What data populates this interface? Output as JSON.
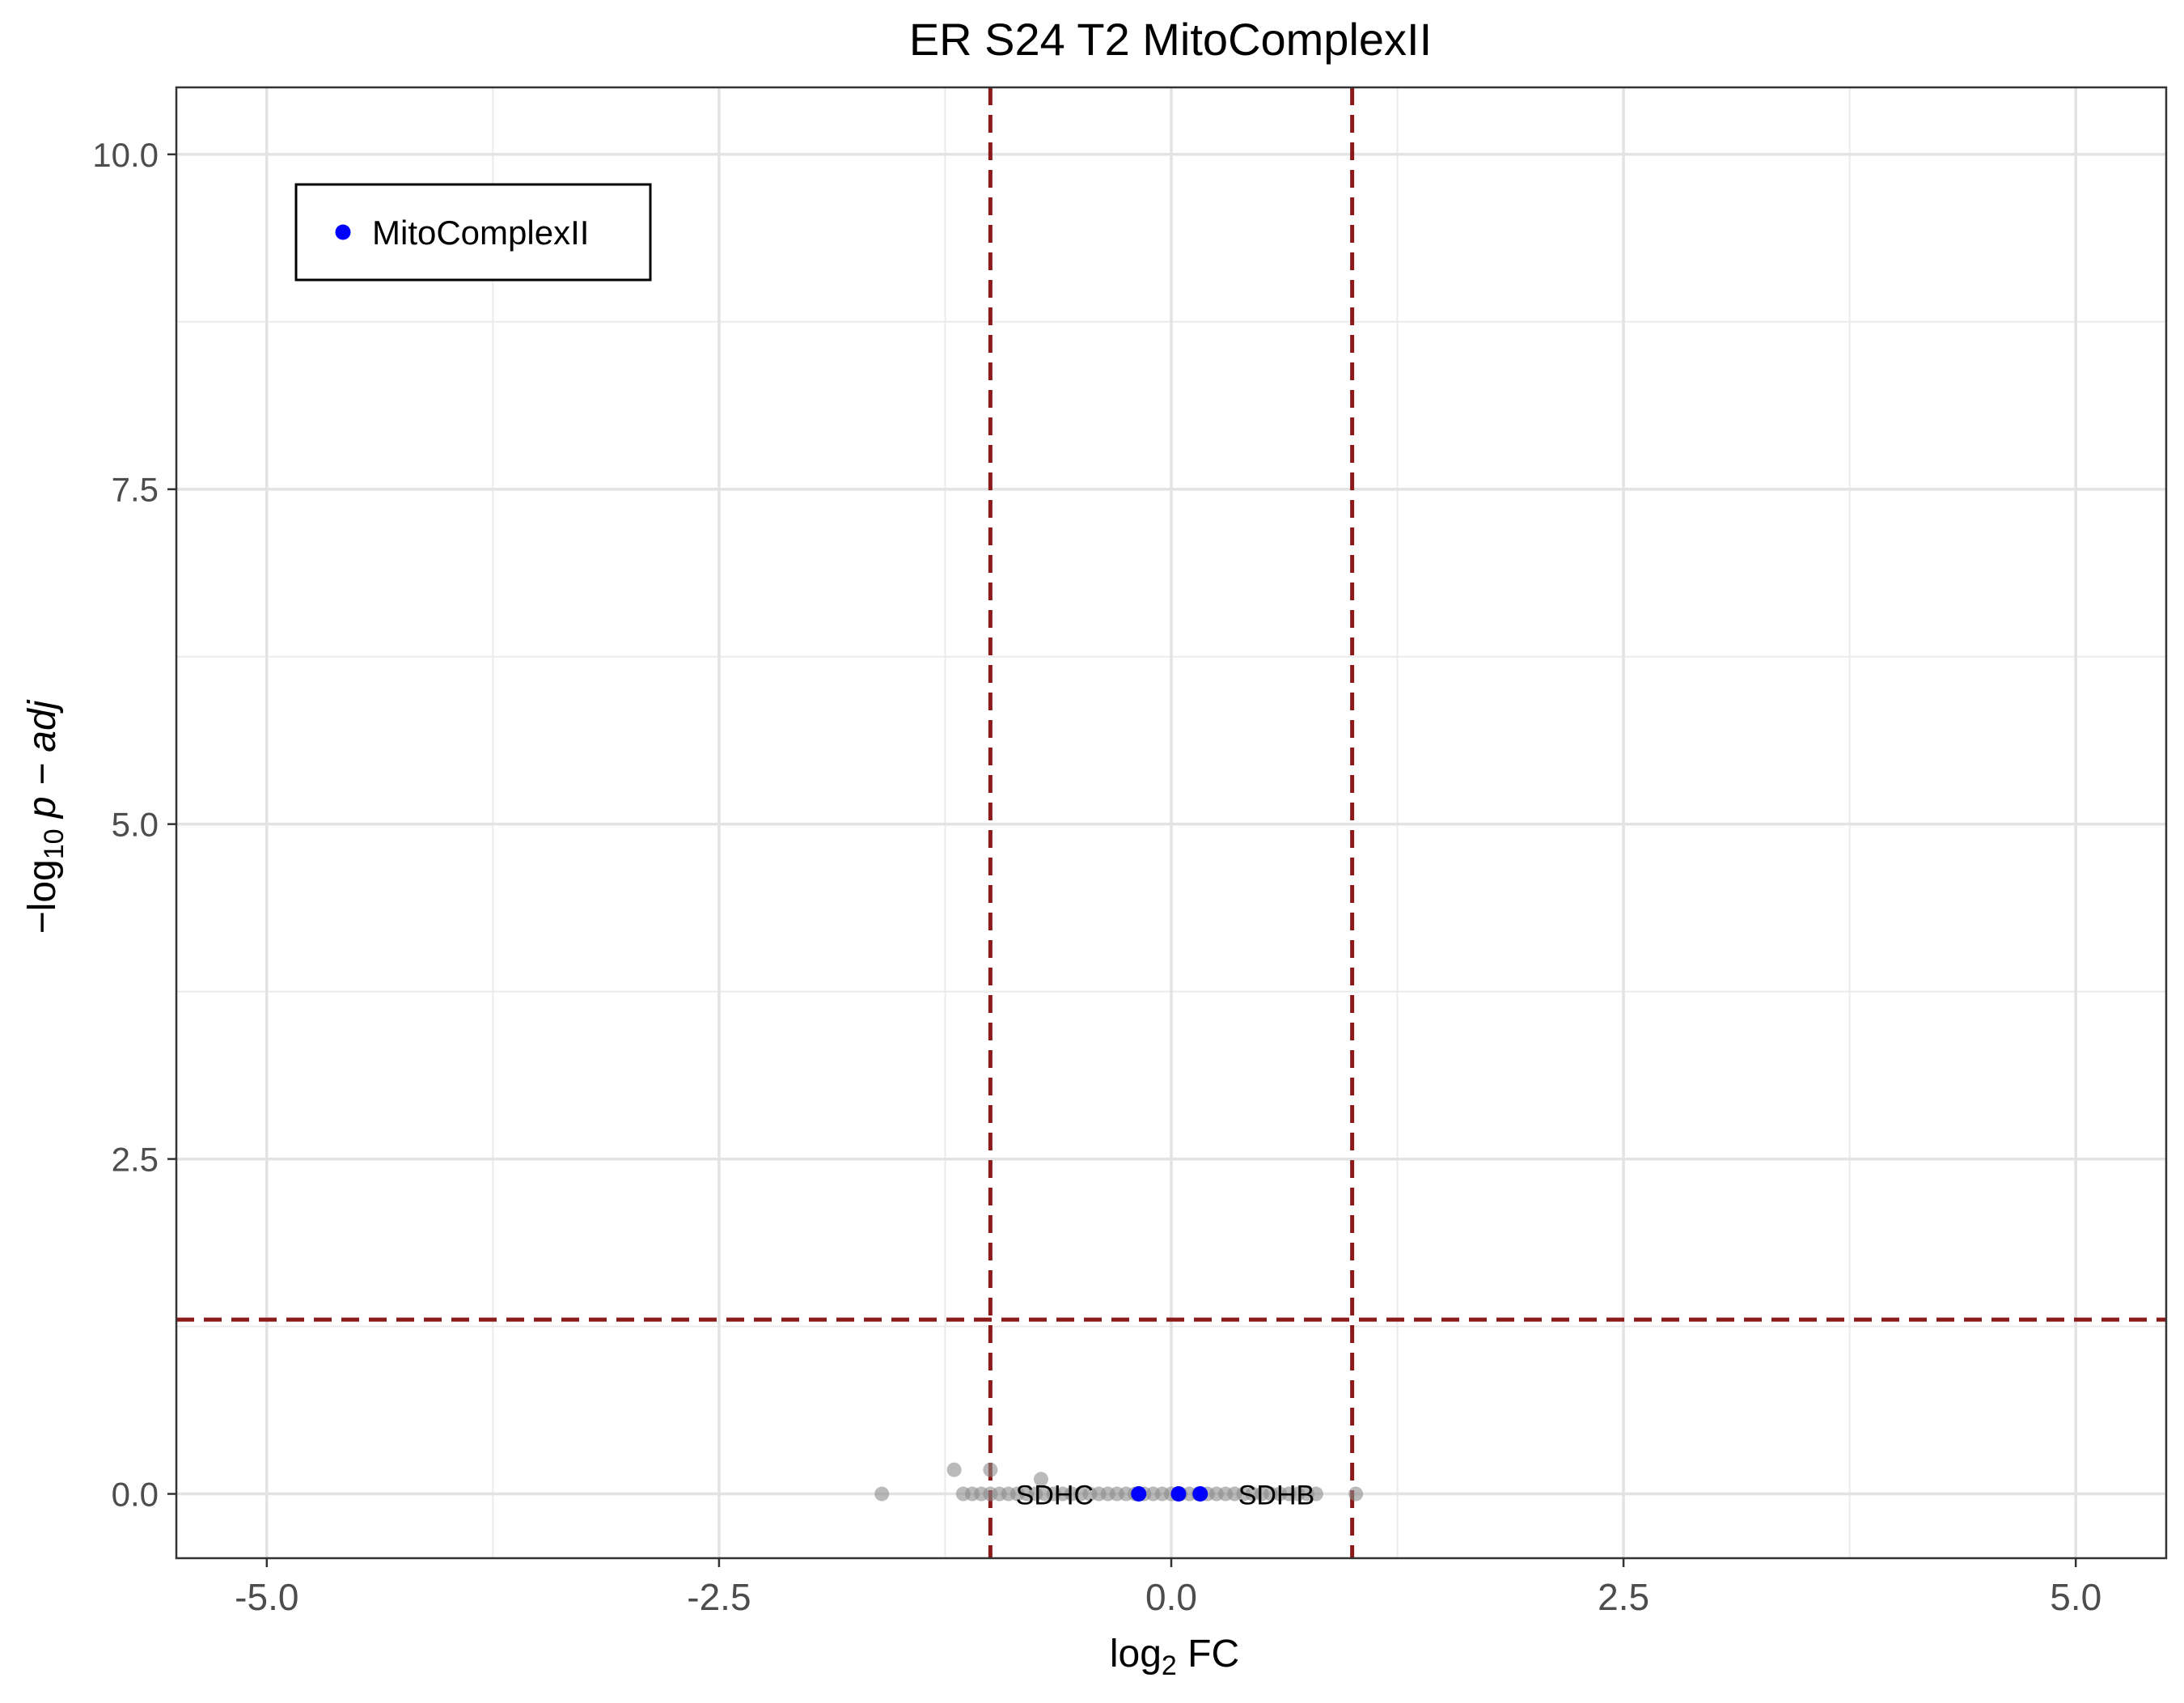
{
  "chart_data": {
    "type": "scatter",
    "title": "ER S24 T2 MitoComplexII",
    "xlabel": {
      "prefix": "log",
      "subscript": "2",
      "suffix": " FC"
    },
    "ylabel": {
      "prefix": "−log",
      "subscript": "10",
      "suffix": " p − adj"
    },
    "xlim": [
      -5.5,
      5.5
    ],
    "ylim": [
      -0.48,
      10.5
    ],
    "x_ticks": [
      -5.0,
      -2.5,
      0.0,
      2.5,
      5.0
    ],
    "x_tick_labels": [
      "-5.0",
      "-2.5",
      "0.0",
      "2.5",
      "5.0"
    ],
    "y_ticks": [
      0.0,
      2.5,
      5.0,
      7.5,
      10.0
    ],
    "y_tick_labels": [
      "0.0",
      "2.5",
      "5.0",
      "7.5",
      "10.0"
    ],
    "x_minor_grid": [
      -3.75,
      -1.25,
      1.25,
      3.75
    ],
    "y_minor_grid": [
      1.25,
      3.75,
      6.25,
      8.75
    ],
    "grid": true,
    "legend": {
      "position": "top-left",
      "entries": [
        {
          "label": "MitoComplexII",
          "color": "#0000ff"
        }
      ]
    },
    "threshold_lines": {
      "vertical": [
        -1.0,
        1.0
      ],
      "horizontal": [
        1.30103
      ],
      "color": "#8b1a1a"
    },
    "series": [
      {
        "name": "",
        "color": "#8c8c8c",
        "points": [
          [
            -1.6,
            0.0
          ],
          [
            -1.2,
            0.18
          ],
          [
            -1.0,
            0.18
          ],
          [
            -0.72,
            0.11
          ],
          [
            -1.15,
            0.0
          ],
          [
            -1.1,
            0.0
          ],
          [
            -1.05,
            0.0
          ],
          [
            -1.0,
            0.0
          ],
          [
            -0.95,
            0.0
          ],
          [
            -0.9,
            0.0
          ],
          [
            -0.85,
            0.0
          ],
          [
            -0.8,
            0.0
          ],
          [
            -0.75,
            0.0
          ],
          [
            -0.7,
            0.0
          ],
          [
            -0.65,
            0.0
          ],
          [
            -0.6,
            0.0
          ],
          [
            -0.55,
            0.0
          ],
          [
            -0.5,
            0.0
          ],
          [
            -0.45,
            0.0
          ],
          [
            -0.4,
            0.0
          ],
          [
            -0.35,
            0.0
          ],
          [
            -0.3,
            0.0
          ],
          [
            -0.25,
            0.0
          ],
          [
            -0.2,
            0.0
          ],
          [
            -0.15,
            0.0
          ],
          [
            -0.1,
            0.0
          ],
          [
            -0.05,
            0.0
          ],
          [
            0.0,
            0.0
          ],
          [
            0.05,
            0.0
          ],
          [
            0.1,
            0.0
          ],
          [
            0.15,
            0.0
          ],
          [
            0.2,
            0.0
          ],
          [
            0.25,
            0.0
          ],
          [
            0.3,
            0.0
          ],
          [
            0.35,
            0.0
          ],
          [
            0.4,
            0.0
          ],
          [
            0.45,
            0.0
          ],
          [
            0.5,
            0.0
          ],
          [
            0.55,
            0.0
          ],
          [
            0.6,
            0.0
          ],
          [
            0.65,
            0.0
          ],
          [
            0.7,
            0.0
          ],
          [
            0.75,
            0.0
          ],
          [
            0.8,
            0.0
          ],
          [
            1.02,
            0.0
          ]
        ]
      },
      {
        "name": "MitoComplexII",
        "color": "#0000ff",
        "points": [
          [
            -0.18,
            0.0
          ],
          [
            0.04,
            0.0
          ],
          [
            0.16,
            0.0
          ]
        ]
      }
    ],
    "annotations": [
      {
        "text": "SDHC",
        "x": -0.86,
        "y": 0.0
      },
      {
        "text": "SDHB",
        "x": 0.37,
        "y": 0.0
      }
    ]
  }
}
